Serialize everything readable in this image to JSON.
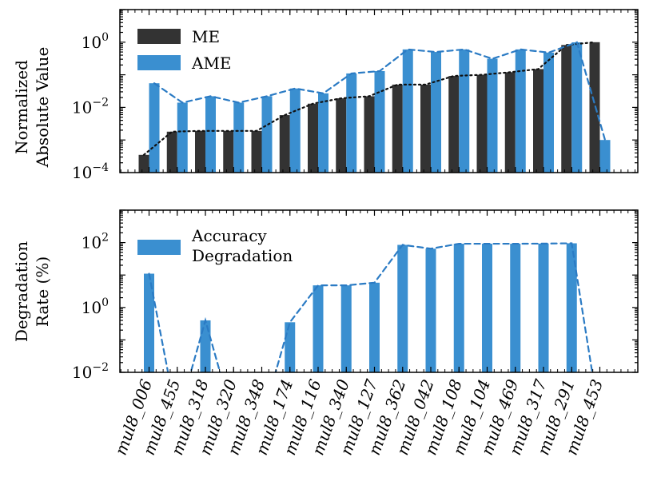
{
  "chart_data": [
    {
      "type": "bar",
      "panel": "top",
      "yscale": "log",
      "ylabel_lines": [
        "Normalized",
        "Absolute Value"
      ],
      "ylim": [
        0.0001,
        10
      ],
      "yticks": [
        {
          "label": "10",
          "exp": "-4"
        },
        {
          "label": "10",
          "exp": "-2"
        },
        {
          "label": "10",
          "exp": "0"
        }
      ],
      "legend_position": "top-left",
      "categories": [
        "mul8_006",
        "mul8_455",
        "mul8_318",
        "mul8_320",
        "mul8_348",
        "mul8_174",
        "mul8_116",
        "mul8_340",
        "mul8_127",
        "mul8_362",
        "mul8_042",
        "mul8_108",
        "mul8_104",
        "mul8_469",
        "mul8_317",
        "mul8_291",
        "mul8_453"
      ],
      "series": [
        {
          "name": "ME",
          "color": "#333333",
          "line_style": "dotted",
          "values": [
            0.00035,
            0.0018,
            0.0019,
            0.0019,
            0.0019,
            0.0058,
            0.013,
            0.019,
            0.022,
            0.05,
            0.05,
            0.092,
            0.1,
            0.12,
            0.15,
            0.82,
            1.0
          ]
        },
        {
          "name": "AME",
          "color": "#3a8fd0",
          "line_style": "dashed",
          "values": [
            0.055,
            0.014,
            0.022,
            0.014,
            0.022,
            0.038,
            0.027,
            0.11,
            0.13,
            0.6,
            0.5,
            0.6,
            0.31,
            0.6,
            0.48,
            0.99,
            0.001
          ]
        }
      ]
    },
    {
      "type": "bar",
      "panel": "bottom",
      "yscale": "log",
      "ylabel_lines": [
        "Degradation",
        "Rate (%)"
      ],
      "ylim": [
        0.01,
        1000
      ],
      "yticks": [
        {
          "label": "10",
          "exp": "-2"
        },
        {
          "label": "10",
          "exp": "0"
        },
        {
          "label": "10",
          "exp": "2"
        }
      ],
      "legend_position": "top-left",
      "categories": [
        "mul8_006",
        "mul8_455",
        "mul8_318",
        "mul8_320",
        "mul8_348",
        "mul8_174",
        "mul8_116",
        "mul8_340",
        "mul8_127",
        "mul8_362",
        "mul8_042",
        "mul8_108",
        "mul8_104",
        "mul8_469",
        "mul8_317",
        "mul8_291",
        "mul8_453"
      ],
      "series": [
        {
          "name_lines": [
            "Accuracy",
            "Degradation"
          ],
          "color": "#3a8fd0",
          "line_style": "dashed",
          "values": [
            11,
            0,
            0.4,
            0,
            0,
            0.35,
            4.8,
            4.8,
            5.8,
            85,
            65,
            92,
            92,
            92,
            93,
            95,
            0
          ]
        }
      ]
    }
  ]
}
